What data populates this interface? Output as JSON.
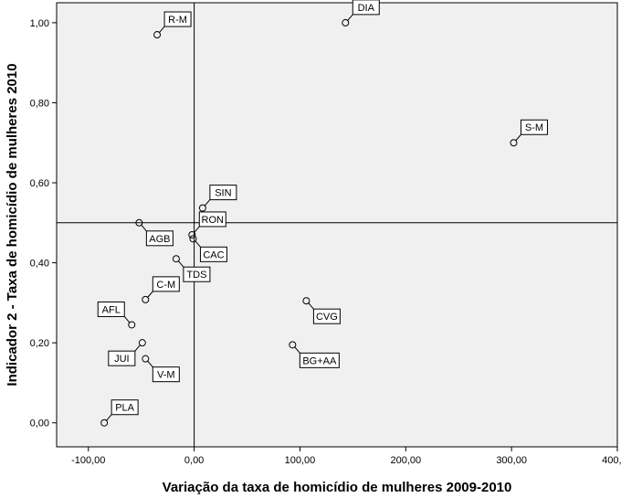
{
  "chart_data": {
    "type": "scatter",
    "xlabel": "Variação da taxa de homicídio de mulheres 2009-2010",
    "ylabel": "Indicador 2 - Taxa de homicídio de mulheres 2010",
    "xlim": [
      -130,
      400
    ],
    "ylim": [
      -0.06,
      1.05
    ],
    "x_ticks": [
      "-100,00",
      "0,00",
      "100,00",
      "200,00",
      "300,00",
      "400,00"
    ],
    "x_tick_values": [
      -100,
      0,
      100,
      200,
      300,
      400
    ],
    "y_ticks": [
      "0,00",
      "0,20",
      "0,40",
      "0,60",
      "0,80",
      "1,00"
    ],
    "y_tick_values": [
      0,
      0.2,
      0.4,
      0.6,
      0.8,
      1.0
    ],
    "reference_lines": {
      "x": 0,
      "y": 0.5
    },
    "grid": false,
    "plot_background": "#f0f0f0",
    "points": [
      {
        "label": "R-M",
        "x": -35,
        "y": 0.97,
        "label_side": "upper-right"
      },
      {
        "label": "DIA",
        "x": 143,
        "y": 1.0,
        "label_side": "upper-right"
      },
      {
        "label": "S-M",
        "x": 302,
        "y": 0.7,
        "label_side": "upper-right"
      },
      {
        "label": "SIN",
        "x": 8,
        "y": 0.537,
        "label_side": "upper-right"
      },
      {
        "label": "AGB",
        "x": -52,
        "y": 0.5,
        "label_side": "lower-right"
      },
      {
        "label": "RON",
        "x": -2,
        "y": 0.47,
        "label_side": "upper-right"
      },
      {
        "label": "CAC",
        "x": -1,
        "y": 0.46,
        "label_side": "lower-right"
      },
      {
        "label": "TDS",
        "x": -17,
        "y": 0.41,
        "label_side": "lower-right"
      },
      {
        "label": "C-M",
        "x": -46,
        "y": 0.308,
        "label_side": "upper-right"
      },
      {
        "label": "CVG",
        "x": 106,
        "y": 0.305,
        "label_side": "lower-right"
      },
      {
        "label": "AFL",
        "x": -59,
        "y": 0.245,
        "label_side": "upper-left"
      },
      {
        "label": "JUI",
        "x": -49,
        "y": 0.2,
        "label_side": "lower-left"
      },
      {
        "label": "V-M",
        "x": -46,
        "y": 0.16,
        "label_side": "lower-right"
      },
      {
        "label": "BG+AA",
        "x": 93,
        "y": 0.195,
        "label_side": "lower-right"
      },
      {
        "label": "PLA",
        "x": -85,
        "y": 0.0,
        "label_side": "upper-right"
      }
    ]
  }
}
